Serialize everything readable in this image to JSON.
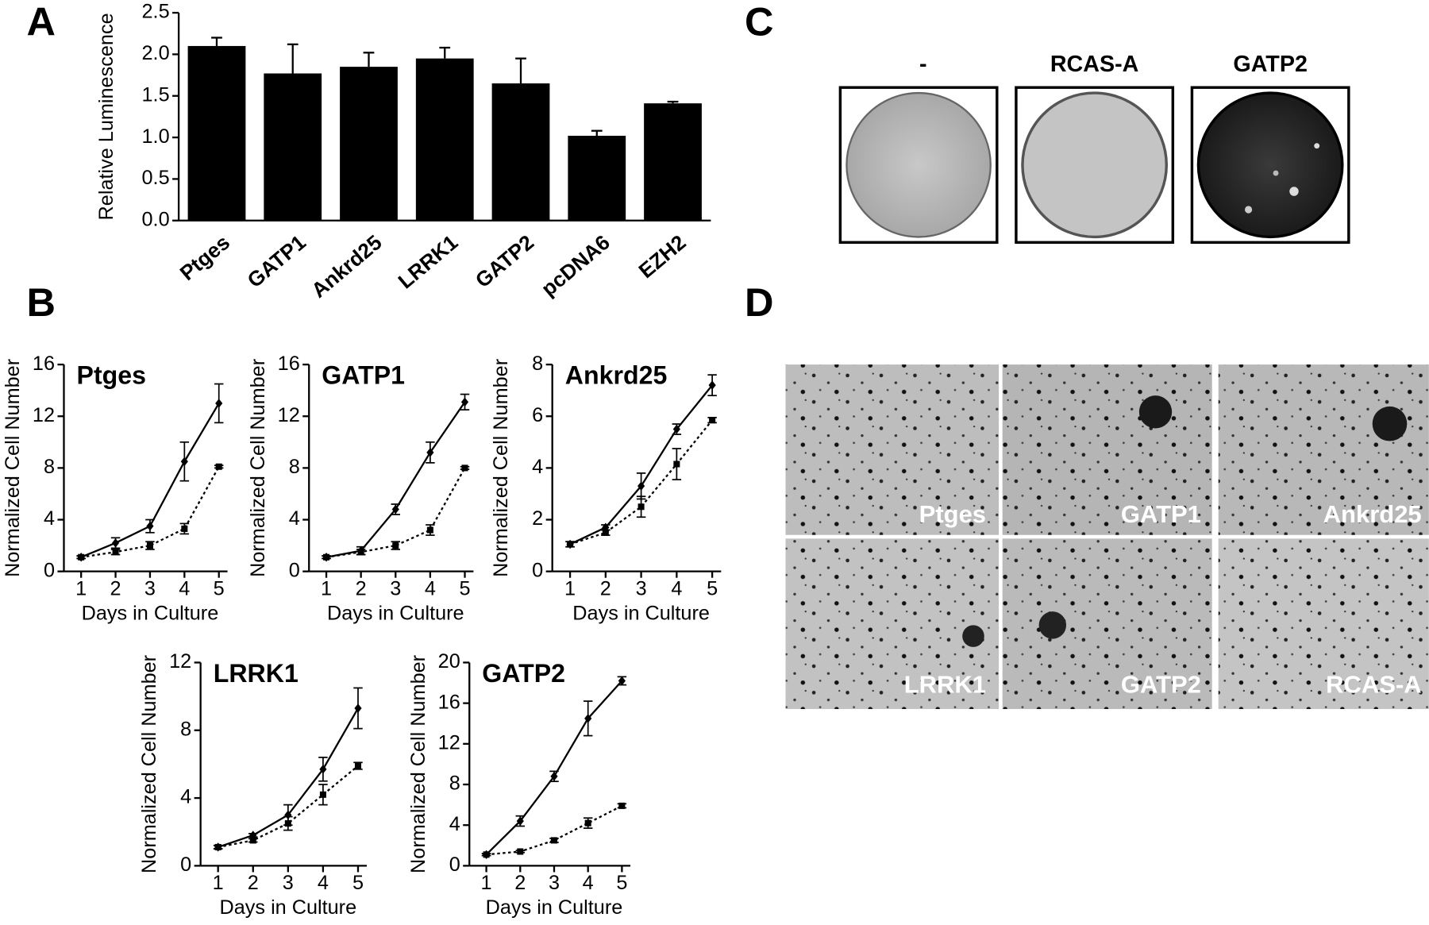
{
  "panel_letters": [
    "A",
    "B",
    "C",
    "D"
  ],
  "chart_data": [
    {
      "type": "bar",
      "ylabel": "Relative Luminescence",
      "categories": [
        "Ptges",
        "GATP1",
        "Ankrd25",
        "LRRK1",
        "GATP2",
        "pcDNA6",
        "EZH2"
      ],
      "values": [
        2.1,
        1.77,
        1.85,
        1.95,
        1.65,
        1.02,
        1.41
      ],
      "errors": [
        0.1,
        0.35,
        0.17,
        0.13,
        0.3,
        0.06,
        0.02
      ],
      "color": "#000000",
      "ylim": [
        0,
        2.5
      ],
      "yticks": [
        {
          "value": 0,
          "label": "0.0"
        },
        0.5,
        {
          "value": 1,
          "label": "1.0"
        },
        1.5,
        {
          "value": 2,
          "label": "2.0"
        },
        2.5
      ]
    },
    {
      "type": "line",
      "title": "Ptges",
      "xlabel": "Days in Culture",
      "ylabel": "Normalized Cell Number",
      "x": [
        1,
        2,
        3,
        4,
        5
      ],
      "xlim": [
        0.5,
        5.5
      ],
      "xticks": [
        1,
        2,
        3,
        4,
        5
      ],
      "ylim": [
        0,
        16
      ],
      "yticks": [
        0,
        4,
        8,
        12,
        16
      ],
      "series": [
        {
          "color": "#000000",
          "line_style": "solid",
          "marker": "diamond",
          "values": [
            1.1,
            2.2,
            3.5,
            8.5,
            13.0
          ],
          "errors": [
            0.1,
            0.4,
            0.5,
            1.5,
            1.5
          ]
        },
        {
          "color": "#000000",
          "line_style": "dotted",
          "marker": "square",
          "values": [
            1.1,
            1.5,
            2.0,
            3.3,
            8.1
          ],
          "errors": [
            0.1,
            0.2,
            0.3,
            0.4,
            0.1
          ]
        }
      ]
    },
    {
      "type": "line",
      "title": "GATP1",
      "xlabel": "Days in Culture",
      "ylabel": "Normalized Cell Number",
      "x": [
        1,
        2,
        3,
        4,
        5
      ],
      "xlim": [
        0.5,
        5.5
      ],
      "xticks": [
        1,
        2,
        3,
        4,
        5
      ],
      "ylim": [
        0,
        16
      ],
      "yticks": [
        0,
        4,
        8,
        12,
        16
      ],
      "series": [
        {
          "color": "#000000",
          "line_style": "solid",
          "marker": "diamond",
          "values": [
            1.1,
            1.6,
            4.8,
            9.2,
            13.1
          ],
          "errors": [
            0.1,
            0.3,
            0.4,
            0.8,
            0.6
          ]
        },
        {
          "color": "#000000",
          "line_style": "dotted",
          "marker": "square",
          "values": [
            1.1,
            1.5,
            2.0,
            3.2,
            8.0
          ],
          "errors": [
            0.1,
            0.2,
            0.3,
            0.4,
            0.1
          ]
        }
      ]
    },
    {
      "type": "line",
      "title": "Ankrd25",
      "xlabel": "Days in Culture",
      "ylabel": "Normalized Cell Number",
      "x": [
        1,
        2,
        3,
        4,
        5
      ],
      "xlim": [
        0.5,
        5.5
      ],
      "xticks": [
        1,
        2,
        3,
        4,
        5
      ],
      "ylim": [
        0,
        8
      ],
      "yticks": [
        0,
        2,
        4,
        6,
        8
      ],
      "series": [
        {
          "color": "#000000",
          "line_style": "solid",
          "marker": "diamond",
          "values": [
            1.05,
            1.7,
            3.3,
            5.5,
            7.2
          ],
          "errors": [
            0.1,
            0.1,
            0.5,
            0.2,
            0.4
          ]
        },
        {
          "color": "#000000",
          "line_style": "dotted",
          "marker": "square",
          "values": [
            1.05,
            1.5,
            2.5,
            4.15,
            5.85
          ],
          "errors": [
            0.1,
            0.1,
            0.4,
            0.6,
            0.1
          ]
        }
      ]
    },
    {
      "type": "line",
      "title": "LRRK1",
      "xlabel": "Days in Culture",
      "ylabel": "Normalized Cell Number",
      "x": [
        1,
        2,
        3,
        4,
        5
      ],
      "xlim": [
        0.5,
        5.5
      ],
      "xticks": [
        1,
        2,
        3,
        4,
        5
      ],
      "ylim": [
        0,
        12
      ],
      "yticks": [
        0,
        4,
        8,
        12
      ],
      "series": [
        {
          "color": "#000000",
          "line_style": "solid",
          "marker": "diamond",
          "values": [
            1.1,
            1.8,
            3.0,
            5.7,
            9.3
          ],
          "errors": [
            0.1,
            0.1,
            0.6,
            0.7,
            1.2
          ]
        },
        {
          "color": "#000000",
          "line_style": "dotted",
          "marker": "square",
          "values": [
            1.1,
            1.5,
            2.5,
            4.2,
            5.9
          ],
          "errors": [
            0.1,
            0.1,
            0.4,
            0.6,
            0.2
          ]
        }
      ]
    },
    {
      "type": "line",
      "title": "GATP2",
      "xlabel": "Days in Culture",
      "ylabel": "Normalized Cell Number",
      "x": [
        1,
        2,
        3,
        4,
        5
      ],
      "xlim": [
        0.5,
        5.5
      ],
      "xticks": [
        1,
        2,
        3,
        4,
        5
      ],
      "ylim": [
        0,
        20
      ],
      "yticks": [
        0,
        4,
        8,
        12,
        16,
        20
      ],
      "series": [
        {
          "color": "#000000",
          "line_style": "solid",
          "marker": "diamond",
          "values": [
            1.1,
            4.4,
            8.8,
            14.5,
            18.2
          ],
          "errors": [
            0.1,
            0.5,
            0.5,
            1.7,
            0.4
          ]
        },
        {
          "color": "#000000",
          "line_style": "dotted",
          "marker": "square",
          "values": [
            1.1,
            1.4,
            2.5,
            4.2,
            5.9
          ],
          "errors": [
            0.1,
            0.1,
            0.2,
            0.5,
            0.2
          ]
        }
      ]
    }
  ],
  "panel_c": {
    "labels": [
      "-",
      "RCAS-A",
      "GATP2"
    ]
  },
  "panel_d": {
    "labels": [
      "Ptges",
      "GATP1",
      "Ankrd25",
      "LRRK1",
      "GATP2",
      "RCAS-A"
    ]
  }
}
